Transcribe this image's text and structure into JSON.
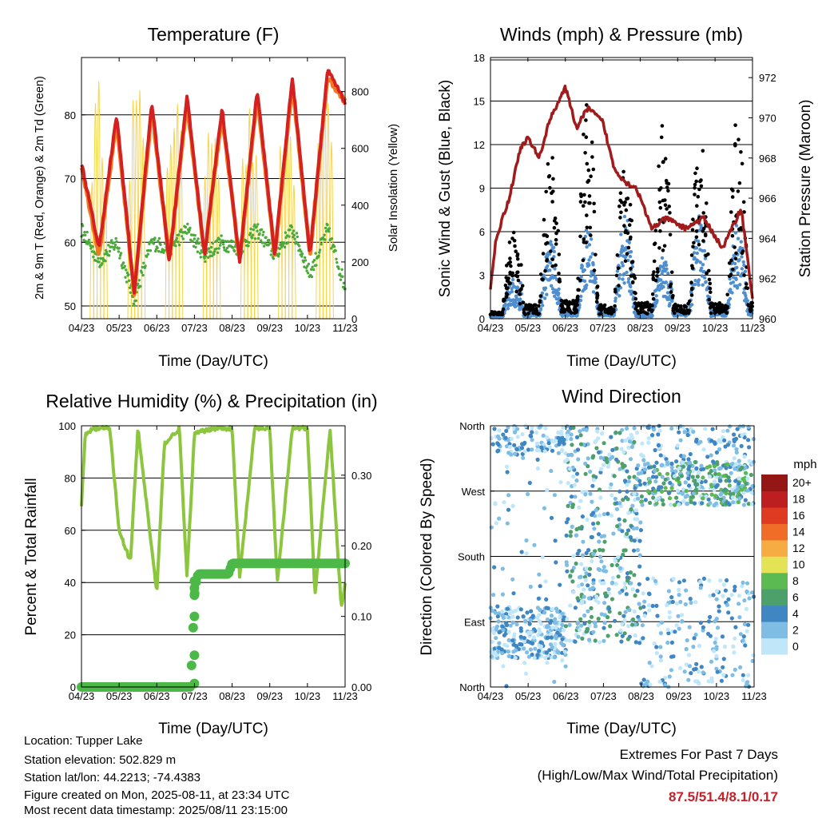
{
  "info": {
    "location": "Location: Tupper Lake",
    "elevation": "Station elevation: 502.829 m",
    "latlon": "Station lat/lon: 44.2213; -74.4383",
    "created": "Figure created on Mon, 2025-08-11, at 23:34 UTC",
    "recent": "Most recent data timestamp: 2025/08/11 23:15:00"
  },
  "extremes": {
    "line1": "Extremes For Past 7 Days",
    "line2": "(High/Low/Max Wind/Total Precipitation)",
    "values": "87.5/51.4/8.1/0.17"
  },
  "chart_data": [
    {
      "type": "line",
      "title": "Temperature (F)",
      "xlabel": "Time (Day/UTC)",
      "ylabel": "2m & 9m T (Red, Orange) & 2m Td (Green)",
      "ylabel_right": "Solar Insolation (Yellow)",
      "x_ticks": [
        "04/23",
        "05/23",
        "06/23",
        "07/23",
        "08/23",
        "09/23",
        "10/23",
        "11/23"
      ],
      "ylim": [
        48,
        89
      ],
      "y_ticks": [
        50,
        60,
        70,
        80
      ],
      "ylim_right": [
        0,
        920
      ],
      "y_ticks_right": [
        0,
        200,
        400,
        600,
        800
      ],
      "gridlines": [
        50,
        60,
        70,
        80
      ],
      "series": [
        {
          "name": "2m T",
          "color": "#d42020",
          "values": [
            72.5,
            59,
            80,
            52,
            82,
            57,
            83,
            58,
            81,
            57,
            84,
            58,
            86,
            58,
            87,
            82
          ]
        },
        {
          "name": "9m T",
          "color": "#f07a22",
          "values": [
            72,
            58,
            79,
            52,
            81,
            57,
            82,
            58,
            80,
            57,
            83,
            58,
            85,
            58,
            86,
            82
          ]
        },
        {
          "name": "2m Td",
          "color": "#4aaa3a",
          "values": [
            62,
            57,
            60,
            51,
            60,
            59,
            62,
            58,
            60,
            59,
            62,
            58,
            62,
            55,
            62,
            53
          ]
        },
        {
          "name": "Solar Insolation",
          "color": "#f7d44a",
          "values": [
            0,
            850,
            0,
            880,
            0,
            860,
            0,
            870,
            0,
            760,
            0,
            800,
            0,
            820,
            0,
            860
          ]
        }
      ]
    },
    {
      "type": "scatter",
      "title": "Winds (mph) & Pressure (mb)",
      "xlabel": "Time (Day/UTC)",
      "ylabel": "Sonic Wind & Gust (Blue, Black)",
      "ylabel_right": "Station Pressure (Maroon)",
      "x_ticks": [
        "04/23",
        "05/23",
        "06/23",
        "07/23",
        "08/23",
        "09/23",
        "10/23",
        "11/23"
      ],
      "ylim": [
        0,
        18
      ],
      "y_ticks": [
        0,
        3,
        6,
        9,
        12,
        15,
        18
      ],
      "ylim_right": [
        960,
        973
      ],
      "y_ticks_right": [
        960,
        962,
        964,
        966,
        968,
        970,
        972
      ],
      "series": [
        {
          "name": "Sonic Wind",
          "color": "#4f8fcf",
          "day_peaks": [
            2.5,
            5,
            6,
            6.5,
            4,
            6.5,
            6,
            7
          ]
        },
        {
          "name": "Gust",
          "color": "#000000",
          "day_peaks": [
            6,
            12,
            16,
            12,
            14,
            13,
            14,
            15
          ]
        },
        {
          "name": "Station Pressure",
          "color": "#a01c1c",
          "x": [
            0,
            0.15,
            0.5,
            0.8,
            1.0,
            1.3,
            1.6,
            2.0,
            2.3,
            2.6,
            3.0,
            3.3,
            3.6,
            3.9,
            4.3,
            4.7,
            5.2,
            5.7,
            6.2,
            6.7,
            7.0
          ],
          "values": [
            961.5,
            964,
            966,
            968.5,
            969,
            968,
            970,
            971.5,
            969.5,
            970.5,
            969.8,
            967.5,
            966.8,
            966.5,
            964.5,
            965,
            964.5,
            965,
            963.5,
            965.5,
            961
          ]
        }
      ]
    },
    {
      "type": "line",
      "title": "Relative Humidity (%) & Precipitation (in)",
      "xlabel": "Time (Day/UTC)",
      "ylabel": "Percent & Total Rainfall",
      "x_ticks": [
        "04/23",
        "05/23",
        "06/23",
        "07/23",
        "08/23",
        "09/23",
        "10/23",
        "11/23"
      ],
      "ylim": [
        0,
        100
      ],
      "y_ticks": [
        0,
        20,
        40,
        60,
        80,
        100
      ],
      "ylim_right": [
        0,
        0.37
      ],
      "y_ticks_right": [
        "0.00",
        "0.10",
        "0.20",
        "0.30"
      ],
      "series": [
        {
          "name": "Relative Humidity",
          "color": "#8cc63f",
          "x": [
            0,
            0.1,
            0.35,
            0.75,
            1.0,
            1.3,
            1.5,
            2.0,
            2.2,
            2.6,
            2.8,
            3.0,
            3.5,
            4.0,
            4.2,
            4.6,
            5.0,
            5.2,
            5.6,
            6.0,
            6.2,
            6.6,
            6.9,
            7.0
          ],
          "values": [
            69,
            97,
            99,
            99,
            60,
            48,
            99,
            36,
            93,
            99,
            42,
            97,
            99,
            99,
            42,
            99,
            99,
            40,
            99,
            99,
            35,
            99,
            30,
            40
          ]
        },
        {
          "name": "Total Rainfall",
          "color": "#4cb848",
          "x": [
            0,
            1,
            2,
            2.9,
            3.0,
            3.05,
            3.1,
            3.2,
            3.9,
            4.0,
            5,
            6,
            7
          ],
          "values": [
            0,
            0,
            0,
            0,
            0.13,
            0.15,
            0.16,
            0.16,
            0.16,
            0.175,
            0.175,
            0.175,
            0.175
          ]
        }
      ]
    },
    {
      "type": "scatter",
      "title": "Wind Direction",
      "xlabel": "Time (Day/UTC)",
      "ylabel": "Direction (Colored By Speed)",
      "x_ticks": [
        "04/23",
        "05/23",
        "06/23",
        "07/23",
        "08/23",
        "09/23",
        "10/23",
        "11/23"
      ],
      "y_ticks": [
        "North",
        "East",
        "South",
        "West",
        "North"
      ],
      "ylim": [
        0,
        360
      ],
      "colorbar": {
        "title": "mph",
        "labels": [
          "0",
          "2",
          "4",
          "6",
          "8",
          "10",
          "12",
          "14",
          "16",
          "18",
          "20+"
        ],
        "colors": [
          "#bfe6f9",
          "#7fbde5",
          "#3f86c2",
          "#4ea06b",
          "#5cba53",
          "#e3e355",
          "#f6ab43",
          "#ef6d27",
          "#df3a22",
          "#bd1e20",
          "#941716"
        ]
      }
    }
  ]
}
